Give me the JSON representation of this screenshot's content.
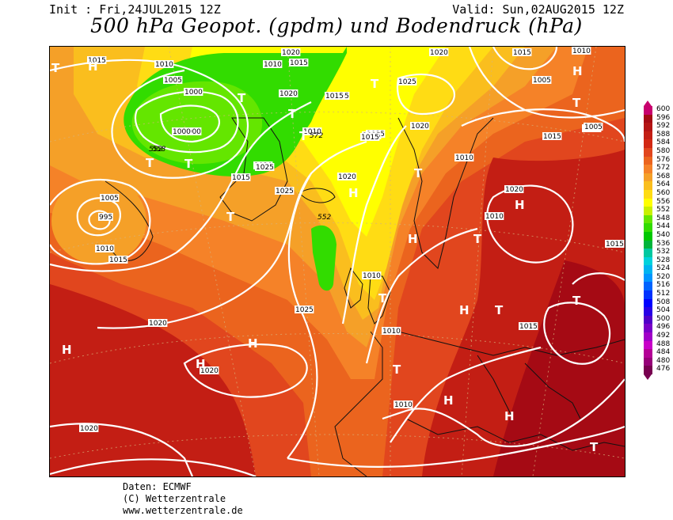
{
  "header": {
    "init": "Init : Fri,24JUL2015 12Z",
    "valid": "Valid: Sun,02AUG2015 12Z",
    "title": "500 hPa Geopot. (gpdm) und Bodendruck (hPa)"
  },
  "legend": {
    "levels": [
      {
        "value": "600",
        "color": "#c8006e"
      },
      {
        "value": "596",
        "color": "#a50a14"
      },
      {
        "value": "592",
        "color": "#b41414"
      },
      {
        "value": "588",
        "color": "#c31e14"
      },
      {
        "value": "584",
        "color": "#d22814"
      },
      {
        "value": "580",
        "color": "#e1461e"
      },
      {
        "value": "576",
        "color": "#eb641e"
      },
      {
        "value": "572",
        "color": "#f58228"
      },
      {
        "value": "568",
        "color": "#f5a028"
      },
      {
        "value": "564",
        "color": "#fabe1e"
      },
      {
        "value": "560",
        "color": "#ffdc14"
      },
      {
        "value": "556",
        "color": "#ffff00"
      },
      {
        "value": "552",
        "color": "#c8f000"
      },
      {
        "value": "548",
        "color": "#64e600"
      },
      {
        "value": "544",
        "color": "#32dc00"
      },
      {
        "value": "540",
        "color": "#00c800"
      },
      {
        "value": "536",
        "color": "#00b43c"
      },
      {
        "value": "532",
        "color": "#00c8a0"
      },
      {
        "value": "528",
        "color": "#00d2dc"
      },
      {
        "value": "524",
        "color": "#00b4f0"
      },
      {
        "value": "520",
        "color": "#0096ff"
      },
      {
        "value": "516",
        "color": "#0064ff"
      },
      {
        "value": "512",
        "color": "#0032ff"
      },
      {
        "value": "508",
        "color": "#0000ff"
      },
      {
        "value": "504",
        "color": "#2800e6"
      },
      {
        "value": "500",
        "color": "#5000c8"
      },
      {
        "value": "496",
        "color": "#7800c8"
      },
      {
        "value": "492",
        "color": "#a000c8"
      },
      {
        "value": "488",
        "color": "#c800c8"
      },
      {
        "value": "484",
        "color": "#b40096"
      },
      {
        "value": "480",
        "color": "#960078"
      },
      {
        "value": "476",
        "color": "#780050"
      }
    ]
  },
  "map": {
    "isobar_labels": [
      "1015",
      "1010",
      "1005",
      "1000",
      "1010",
      "1015",
      "1005",
      "1025",
      "1005",
      "1020",
      "1015",
      "1020",
      "1015",
      "1020",
      "1000",
      "1015",
      "1025",
      "1020",
      "1010",
      "1000",
      "995",
      "1005",
      "1010",
      "1015",
      "1015",
      "1015",
      "1020",
      "1015",
      "1020",
      "1010",
      "1015",
      "1010",
      "1010",
      "1020",
      "1025",
      "1020",
      "1025",
      "1010",
      "1010",
      "1010",
      "1020",
      "1020",
      "1010",
      "1015",
      "1005",
      "1015"
    ],
    "geopot_labels": [
      "558",
      "572",
      "552",
      "552"
    ],
    "highs": [
      "H",
      "H",
      "H",
      "H",
      "H",
      "H",
      "H",
      "H",
      "H",
      "H",
      "H"
    ],
    "lows": [
      "T",
      "T",
      "T",
      "T",
      "T",
      "T",
      "T",
      "T",
      "T",
      "T",
      "T",
      "T",
      "T",
      "T",
      "T",
      "T"
    ]
  },
  "credits": {
    "line1": "Daten: ECMWF",
    "line2": "(C) Wetterzentrale",
    "line3": "www.wetterzentrale.de"
  }
}
